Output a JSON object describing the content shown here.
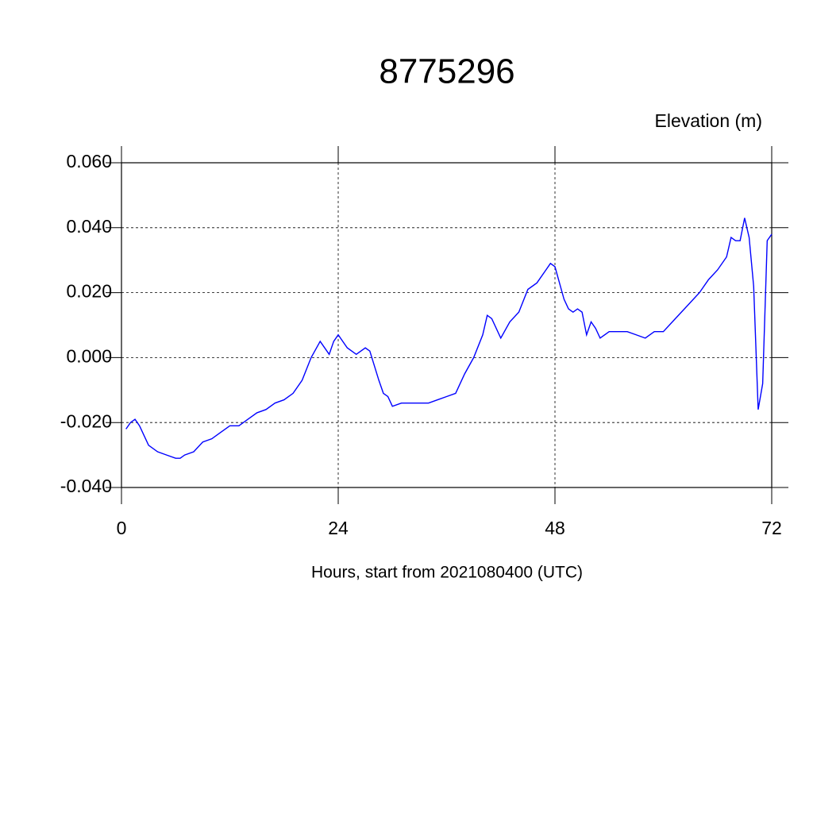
{
  "chart_data": {
    "type": "line",
    "title": "8775296",
    "y_label": "Elevation (m)",
    "x_label": "Hours, start from 2021080400 (UTC)",
    "x": [
      0.5,
      1,
      1.5,
      2,
      2.5,
      3,
      4,
      5,
      6,
      6.5,
      7,
      8,
      9,
      10,
      11,
      12,
      13,
      14,
      15,
      16,
      17,
      18,
      19,
      20,
      21,
      22,
      23,
      23.5,
      24,
      25,
      26,
      27,
      27.5,
      28.5,
      29,
      29.5,
      30,
      31,
      32,
      33,
      34,
      35,
      36,
      37,
      38,
      39,
      40,
      40.5,
      41,
      42,
      43,
      44,
      45,
      46,
      47,
      47.5,
      48,
      49,
      49.5,
      50,
      50.5,
      51,
      51.5,
      52,
      52.5,
      53,
      54,
      55,
      56,
      57,
      58,
      59,
      60,
      61,
      62,
      63,
      64,
      65,
      66,
      67,
      67.5,
      68,
      68.5,
      69,
      69.5,
      70,
      70.5,
      71,
      71.5,
      72
    ],
    "series": [
      {
        "name": "Elevation",
        "color": "#0000ff",
        "values": [
          -0.022,
          -0.02,
          -0.019,
          -0.021,
          -0.024,
          -0.027,
          -0.029,
          -0.03,
          -0.031,
          -0.031,
          -0.03,
          -0.029,
          -0.026,
          -0.025,
          -0.023,
          -0.021,
          -0.021,
          -0.019,
          -0.017,
          -0.016,
          -0.014,
          -0.013,
          -0.011,
          -0.007,
          0.0,
          0.005,
          0.001,
          0.005,
          0.007,
          0.003,
          0.001,
          0.003,
          0.002,
          -0.007,
          -0.011,
          -0.012,
          -0.015,
          -0.014,
          -0.014,
          -0.014,
          -0.014,
          -0.013,
          -0.012,
          -0.011,
          -0.005,
          0.0,
          0.007,
          0.013,
          0.012,
          0.006,
          0.011,
          0.014,
          0.021,
          0.023,
          0.027,
          0.029,
          0.028,
          0.018,
          0.015,
          0.014,
          0.015,
          0.014,
          0.007,
          0.011,
          0.009,
          0.006,
          0.008,
          0.008,
          0.008,
          0.007,
          0.006,
          0.008,
          0.008,
          0.011,
          0.014,
          0.017,
          0.02,
          0.024,
          0.027,
          0.031,
          0.037,
          0.036,
          0.036,
          0.043,
          0.037,
          0.022,
          -0.016,
          -0.008,
          0.036,
          0.038
        ]
      }
    ],
    "xlim": [
      0,
      72
    ],
    "xticks": [
      0,
      24,
      48,
      72
    ],
    "ylim": [
      -0.04,
      0.06
    ],
    "yticks": [
      {
        "value": -0.04,
        "label": "-0.040"
      },
      {
        "value": -0.02,
        "label": "-0.020"
      },
      {
        "value": 0,
        "label": "0.000"
      },
      {
        "value": 0.02,
        "label": "0.020"
      },
      {
        "value": 0.04,
        "label": "0.040"
      },
      {
        "value": 0.06,
        "label": "0.060"
      }
    ],
    "grid": true
  }
}
